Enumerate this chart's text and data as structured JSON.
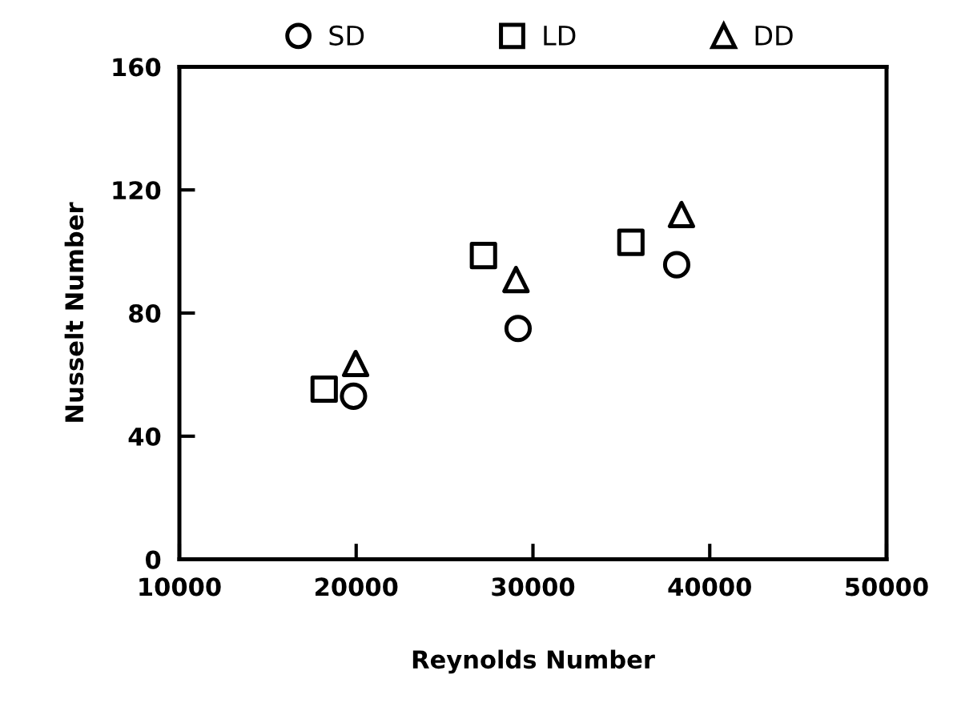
{
  "chart_data": {
    "type": "scatter",
    "xlabel": "Reynolds Number",
    "ylabel": "Nusselt Number",
    "xlim": [
      10000,
      50000
    ],
    "xticks": [
      10000,
      20000,
      30000,
      40000,
      50000
    ],
    "ylim": [
      0,
      160
    ],
    "yticks": [
      0,
      40,
      80,
      120,
      160
    ],
    "grid": false,
    "legend": "top",
    "series": [
      {
        "name": "SD",
        "color": "#000000",
        "marker": "circle",
        "x": [
          19850,
          29160,
          38130
        ],
        "values": [
          53,
          75,
          95.7
        ]
      },
      {
        "name": "LD",
        "color": "#000000",
        "marker": "square",
        "x": [
          18190,
          27200,
          35540
        ],
        "values": [
          55.3,
          98.7,
          103
        ]
      },
      {
        "name": "DD",
        "color": "#000000",
        "marker": "triangle",
        "x": [
          19970,
          29040,
          38400
        ],
        "values": [
          63.6,
          90.9,
          112
        ]
      }
    ]
  }
}
